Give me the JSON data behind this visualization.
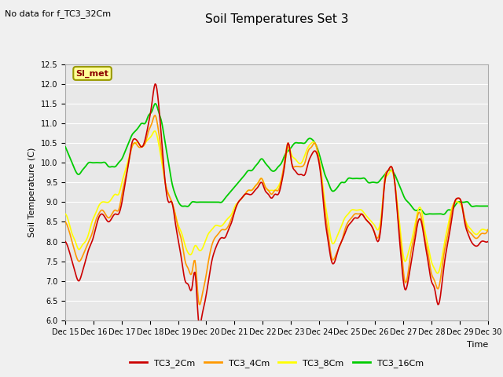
{
  "title": "Soil Temperatures Set 3",
  "xlabel": "Time",
  "ylabel": "Soil Temperature (C)",
  "no_data_text": "No data for f_TC3_32Cm",
  "si_met_label": "SI_met",
  "ylim": [
    6.0,
    12.5
  ],
  "yticks": [
    6.0,
    6.5,
    7.0,
    7.5,
    8.0,
    8.5,
    9.0,
    9.5,
    10.0,
    10.5,
    11.0,
    11.5,
    12.0,
    12.5
  ],
  "xtick_labels": [
    "Dec 15",
    "Dec 16",
    "Dec 17",
    "Dec 18",
    "Dec 19",
    "Dec 20",
    "Dec 21",
    "Dec 22",
    "Dec 23",
    "Dec 24",
    "Dec 25",
    "Dec 26",
    "Dec 27",
    "Dec 28",
    "Dec 29",
    "Dec 30"
  ],
  "colors": {
    "TC3_2Cm": "#cc0000",
    "TC3_4Cm": "#ff9900",
    "TC3_8Cm": "#ffff00",
    "TC3_16Cm": "#00cc00"
  },
  "legend_labels": [
    "TC3_2Cm",
    "TC3_4Cm",
    "TC3_8Cm",
    "TC3_16Cm"
  ],
  "fig_bg_color": "#f0f0f0",
  "plot_bg_color": "#e8e8e8",
  "grid_color": "#ffffff",
  "title_fontsize": 11,
  "axis_label_fontsize": 8,
  "tick_fontsize": 7,
  "legend_fontsize": 8,
  "no_data_fontsize": 8,
  "si_met_fontsize": 8
}
